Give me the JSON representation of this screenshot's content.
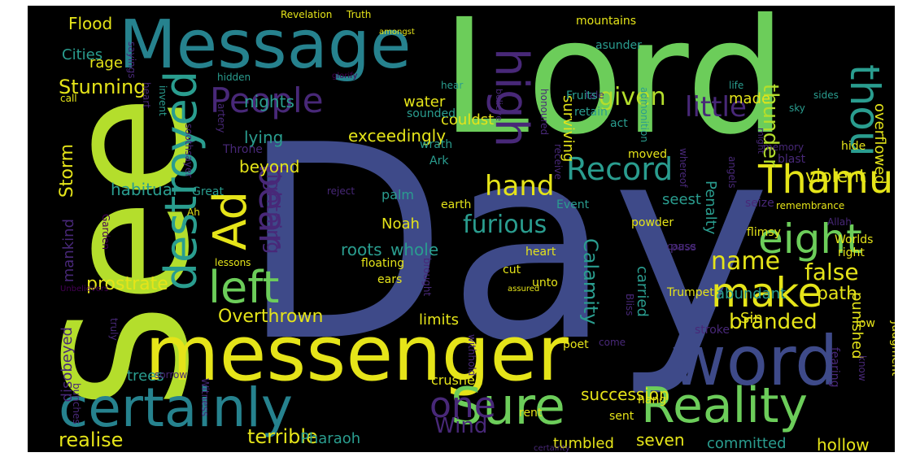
{
  "palette": {
    "background": "#000000",
    "yellow": "#e5e419",
    "lightgreen": "#b4de2c",
    "green": "#6ccd5a",
    "teal": "#2a9d8f",
    "bluegreen": "#26828e",
    "blue": "#3e4a89",
    "purple": "#482878",
    "darkpurple": "#440154"
  },
  "words": [
    {
      "id": "Lord",
      "text": "Lord"
    },
    {
      "id": "Day",
      "text": "Day"
    },
    {
      "id": "See",
      "text": "See"
    },
    {
      "id": "Message",
      "text": "Message"
    },
    {
      "id": "messenger",
      "text": "messenger"
    },
    {
      "id": "word",
      "text": "word"
    },
    {
      "id": "Reality",
      "text": "Reality"
    },
    {
      "id": "certainly",
      "text": "certainly"
    },
    {
      "id": "Sure",
      "text": "Sure"
    },
    {
      "id": "Thamud",
      "text": "Thamud"
    },
    {
      "id": "eight",
      "text": "eight"
    },
    {
      "id": "make",
      "text": "make"
    },
    {
      "id": "left",
      "text": "left"
    },
    {
      "id": "Ad",
      "text": "Ad"
    },
    {
      "id": "destroyed",
      "text": "destroyed"
    },
    {
      "id": "high",
      "text": "high"
    },
    {
      "id": "thou",
      "text": "thou"
    },
    {
      "id": "People",
      "text": "People"
    },
    {
      "id": "bear",
      "text": "bear"
    },
    {
      "id": "Record",
      "text": "Record"
    },
    {
      "id": "hand",
      "text": "hand"
    },
    {
      "id": "one",
      "text": "one"
    },
    {
      "id": "given",
      "text": "given"
    },
    {
      "id": "little",
      "text": "little"
    },
    {
      "id": "name",
      "text": "name"
    },
    {
      "id": "furious",
      "text": "furious"
    },
    {
      "id": "Stunning",
      "text": "Stunning"
    },
    {
      "id": "Storm",
      "text": "Storm"
    },
    {
      "id": "thunder",
      "text": "thunder"
    },
    {
      "id": "lightning",
      "text": "lightning"
    },
    {
      "id": "violent",
      "text": "violent"
    },
    {
      "id": "Calamity",
      "text": "Calamity"
    },
    {
      "id": "false",
      "text": "false"
    },
    {
      "id": "path",
      "text": "path"
    },
    {
      "id": "branded",
      "text": "branded"
    },
    {
      "id": "Wind",
      "text": "Wind"
    },
    {
      "id": "realise",
      "text": "realise"
    },
    {
      "id": "terrible",
      "text": "terrible"
    },
    {
      "id": "Pharaoh",
      "text": "Pharaoh"
    },
    {
      "id": "tumbled",
      "text": "tumbled"
    },
    {
      "id": "seven",
      "text": "seven"
    },
    {
      "id": "committed",
      "text": "committed"
    },
    {
      "id": "hollow",
      "text": "hollow"
    },
    {
      "id": "succession",
      "text": "succession"
    },
    {
      "id": "prostrate",
      "text": "prostrate"
    },
    {
      "id": "Overthrown",
      "text": "Overthrown"
    },
    {
      "id": "exceedingly",
      "text": "exceedingly"
    },
    {
      "id": "overflowed",
      "text": "overflowed"
    },
    {
      "id": "surviving",
      "text": "surviving"
    },
    {
      "id": "punished",
      "text": "punished"
    },
    {
      "id": "abundant",
      "text": "abundant"
    },
    {
      "id": "whole",
      "text": "whole"
    },
    {
      "id": "roots",
      "text": "roots"
    },
    {
      "id": "Noah",
      "text": "Noah"
    },
    {
      "id": "palm",
      "text": "palm"
    },
    {
      "id": "seest",
      "text": "seest"
    },
    {
      "id": "beyond",
      "text": "beyond"
    },
    {
      "id": "habitual",
      "text": "habitual"
    },
    {
      "id": "lying",
      "text": "lying"
    },
    {
      "id": "nights",
      "text": "nights"
    },
    {
      "id": "water",
      "text": "water"
    },
    {
      "id": "couldst",
      "text": "couldst"
    },
    {
      "id": "Flood",
      "text": "Flood"
    },
    {
      "id": "rage",
      "text": "rage"
    },
    {
      "id": "Cities",
      "text": "Cities"
    },
    {
      "id": "limits",
      "text": "limits"
    },
    {
      "id": "Sin",
      "text": "Sin"
    },
    {
      "id": "carried",
      "text": "carried"
    },
    {
      "id": "Penalty",
      "text": "Penalty"
    },
    {
      "id": "made",
      "text": "made"
    },
    {
      "id": "trees",
      "text": "trees"
    },
    {
      "id": "disobeyed",
      "text": "disobeyed"
    },
    {
      "id": "mankind",
      "text": "mankind"
    },
    {
      "id": "crushed",
      "text": "crushed"
    },
    {
      "id": "Revelation",
      "text": "Revelation"
    },
    {
      "id": "Truth",
      "text": "Truth"
    },
    {
      "id": "mountains",
      "text": "mountains"
    },
    {
      "id": "amongst",
      "text": "amongst"
    },
    {
      "id": "asunder",
      "text": "asunder"
    },
    {
      "id": "hidden",
      "text": "hidden"
    },
    {
      "id": "glorify",
      "text": "glorify"
    },
    {
      "id": "sayings",
      "text": "sayings"
    },
    {
      "id": "call",
      "text": "call"
    },
    {
      "id": "hear",
      "text": "hear"
    },
    {
      "id": "believe",
      "text": "believe"
    },
    {
      "id": "tale",
      "text": "tale"
    },
    {
      "id": "life",
      "text": "life"
    },
    {
      "id": "sides",
      "text": "sides"
    },
    {
      "id": "sky",
      "text": "sky"
    },
    {
      "id": "Fruits",
      "text": "Fruits"
    },
    {
      "id": "retain",
      "text": "retain"
    },
    {
      "id": "act",
      "text": "act"
    },
    {
      "id": "honoured",
      "text": "honoured"
    },
    {
      "id": "admonition",
      "text": "admonition"
    },
    {
      "id": "sounded",
      "text": "sounded"
    },
    {
      "id": "invent",
      "text": "invent"
    },
    {
      "id": "heart",
      "text": "heart"
    },
    {
      "id": "artery",
      "text": "artery"
    },
    {
      "id": "soothsayer",
      "text": "soothsayer"
    },
    {
      "id": "Throne",
      "text": "Throne"
    },
    {
      "id": "wrath",
      "text": "wrath"
    },
    {
      "id": "Ark",
      "text": "Ark"
    },
    {
      "id": "moved",
      "text": "moved"
    },
    {
      "id": "memory",
      "text": "memory"
    },
    {
      "id": "blast",
      "text": "blast"
    },
    {
      "id": "hide",
      "text": "hide"
    },
    {
      "id": "might",
      "text": "might"
    },
    {
      "id": "reject",
      "text": "reject"
    },
    {
      "id": "receive",
      "text": "receive"
    },
    {
      "id": "whereof",
      "text": "whereof"
    },
    {
      "id": "Great",
      "text": "Great"
    },
    {
      "id": "earth",
      "text": "earth"
    },
    {
      "id": "Event",
      "text": "Event"
    },
    {
      "id": "angels",
      "text": "angels"
    },
    {
      "id": "seize",
      "text": "seize"
    },
    {
      "id": "remembrance",
      "text": "remembrance"
    },
    {
      "id": "Ah",
      "text": "Ah"
    },
    {
      "id": "powder",
      "text": "powder"
    },
    {
      "id": "flimsy",
      "text": "flimsy"
    },
    {
      "id": "Allah",
      "text": "Allah"
    },
    {
      "id": "Garden",
      "text": "Garden"
    },
    {
      "id": "pass",
      "text": "pass"
    },
    {
      "id": "Worlds",
      "text": "Worlds"
    },
    {
      "id": "heart2",
      "text": "heart"
    },
    {
      "id": "right",
      "text": "right"
    },
    {
      "id": "cause",
      "text": "cause"
    },
    {
      "id": "lessons",
      "text": "lessons"
    },
    {
      "id": "floating",
      "text": "floating"
    },
    {
      "id": "cut",
      "text": "cut"
    },
    {
      "id": "ears",
      "text": "ears"
    },
    {
      "id": "unto",
      "text": "unto"
    },
    {
      "id": "brought",
      "text": "brought"
    },
    {
      "id": "assured",
      "text": "assured"
    },
    {
      "id": "Unbelievers",
      "text": "Unbelievers"
    },
    {
      "id": "Trumpet",
      "text": "Trumpet"
    },
    {
      "id": "Bliss",
      "text": "Bliss"
    },
    {
      "id": "stroke",
      "text": "stroke"
    },
    {
      "id": "low",
      "text": "low"
    },
    {
      "id": "truly",
      "text": "truly"
    },
    {
      "id": "withhold",
      "text": "withhold"
    },
    {
      "id": "poet",
      "text": "poet"
    },
    {
      "id": "come",
      "text": "come"
    },
    {
      "id": "fearing",
      "text": "fearing"
    },
    {
      "id": "Judgment",
      "text": "Judgment"
    },
    {
      "id": "know",
      "text": "know"
    },
    {
      "id": "bunches",
      "text": "bunches"
    },
    {
      "id": "sorrow",
      "text": "sorrow"
    },
    {
      "id": "Witness",
      "text": "Witness"
    },
    {
      "id": "rent",
      "text": "rent"
    },
    {
      "id": "sent",
      "text": "sent"
    },
    {
      "id": "hang",
      "text": "hang"
    },
    {
      "id": "certainty",
      "text": "certainty"
    }
  ]
}
